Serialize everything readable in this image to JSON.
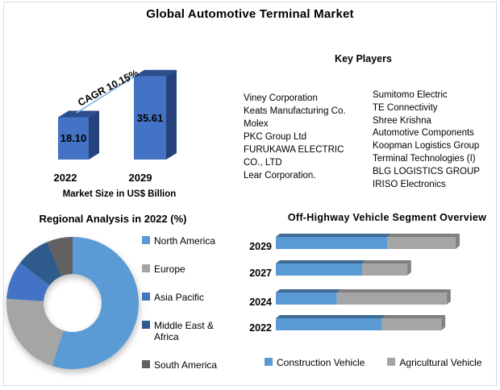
{
  "header": {
    "title": "Global Automotive Terminal Market"
  },
  "colors": {
    "border": "#CFDFEF",
    "column_front": "#4472C4",
    "column_top": "#2C4D8E",
    "column_side": "#25427C",
    "arrow": "#7FB2E5",
    "stacked_blue_top": "#3E6A94",
    "stacked_gray_top": "#7F7F7F",
    "stacked_end_cap": "#838383"
  },
  "key_players": {
    "heading": "Key Players",
    "column_left": [
      "Viney Corporation",
      "Keats Manufacturing Co.",
      "Molex",
      "PKC Group Ltd",
      "FURUKAWA ELECTRIC",
      "CO., LTD",
      "Lear Corporation."
    ],
    "column_right": [
      "Sumitomo Electric",
      "TE Connectivity",
      "Shree Krishna",
      "Automotive Components",
      "Koopman Logistics Group",
      "Terminal Technologies (I)",
      "BLG LOGISTICS GROUP",
      "IRISO Electronics"
    ]
  },
  "regional_chart": {
    "legend": [
      {
        "label": "North America",
        "color": "#5B9BD5"
      },
      {
        "label": "Europe",
        "color": "#A5A5A5"
      },
      {
        "label": "Asia Pacific",
        "color": "#4472C4"
      },
      {
        "label": "Middle East & Africa",
        "color": "#2E5B8C"
      },
      {
        "label": "South America",
        "color": "#616161"
      }
    ]
  },
  "segment_chart": {
    "legend": [
      {
        "label": "Construction Vehicle",
        "color": "#5B9BD5"
      },
      {
        "label": "Agricultural Vehicle",
        "color": "#A5A5A5"
      }
    ]
  },
  "chart_data": [
    {
      "type": "bar",
      "style": "3d-column",
      "title": "Market Size in US$ Billion",
      "categories": [
        "2022",
        "2029"
      ],
      "values": [
        18.1,
        35.61
      ],
      "annotation": "CAGR 10.15%",
      "bar_color": "#4472C4",
      "xlabel": "",
      "ylabel": "Market Size in US$ Billion"
    },
    {
      "type": "pie",
      "donut": true,
      "title": "Regional Analysis in 2022 (%)",
      "labels": [
        "North America",
        "Europe",
        "Asia Pacific",
        "Middle East & Africa",
        "South America"
      ],
      "values": [
        55,
        21,
        9.4,
        8.3,
        6.3
      ],
      "colors": [
        "#5B9BD5",
        "#A5A5A5",
        "#4472C4",
        "#2E5B8C",
        "#616161"
      ],
      "start_angle_deg_from_top": 0,
      "direction": "clockwise",
      "legend_position": "right"
    },
    {
      "type": "bar",
      "orientation": "horizontal",
      "stacked": true,
      "style": "3d",
      "title": "Off-Highway Vehicle Segment Overview",
      "categories": [
        "2029",
        "2027",
        "2024",
        "2022"
      ],
      "series": [
        {
          "name": "Construction Vehicle",
          "color": "#5B9BD5",
          "values": [
            62,
            48,
            34,
            59
          ]
        },
        {
          "name": "Agricultural Vehicle",
          "color": "#A5A5A5",
          "values": [
            38,
            25,
            61,
            33
          ]
        }
      ],
      "xlim": [
        0,
        100
      ],
      "grid": false,
      "legend_position": "bottom"
    }
  ]
}
